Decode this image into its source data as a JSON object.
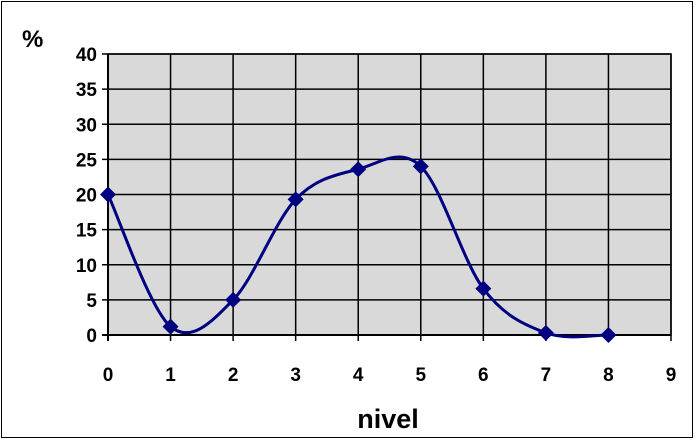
{
  "chart_data": {
    "type": "line",
    "title": "",
    "xlabel": "nivel",
    "ylabel": "%",
    "x": [
      0,
      1,
      2,
      3,
      4,
      5,
      6,
      7,
      8
    ],
    "series": [
      {
        "values": [
          20,
          1.2,
          5,
          19.3,
          23.6,
          24,
          6.6,
          0.3,
          0
        ]
      }
    ],
    "xlim": [
      0,
      9
    ],
    "ylim": [
      0,
      40
    ],
    "xticks": [
      "0",
      "1",
      "2",
      "3",
      "4",
      "5",
      "6",
      "7",
      "8",
      "9"
    ],
    "yticks": [
      "0",
      "5",
      "10",
      "15",
      "20",
      "25",
      "30",
      "35",
      "40"
    ],
    "grid": true,
    "smooth": true,
    "colors": {
      "line": "#000080",
      "marker": "#000080",
      "plot_background": "#d9d9d9",
      "grid": "#000000"
    },
    "marker": "diamond-icon"
  }
}
